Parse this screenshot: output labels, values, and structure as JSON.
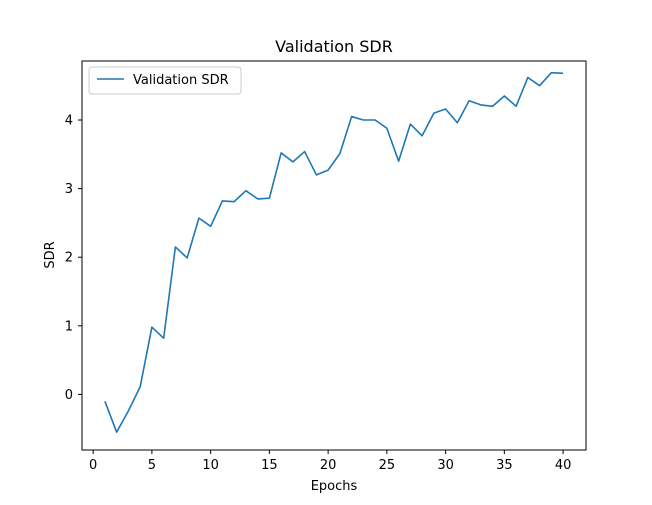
{
  "chart_data": {
    "type": "line",
    "title": "Validation SDR",
    "xlabel": "Epochs",
    "ylabel": "SDR",
    "xlim": [
      -0.95,
      41.95
    ],
    "ylim": [
      -0.81,
      4.86
    ],
    "xticks": [
      0,
      5,
      10,
      15,
      20,
      25,
      30,
      35,
      40
    ],
    "yticks": [
      0,
      1,
      2,
      3,
      4
    ],
    "grid": false,
    "legend_position": "top-left",
    "series": [
      {
        "name": "Validation SDR",
        "color": "#1f77b4",
        "x": [
          1,
          2,
          3,
          4,
          5,
          6,
          7,
          8,
          9,
          10,
          11,
          12,
          13,
          14,
          15,
          16,
          17,
          18,
          19,
          20,
          21,
          22,
          23,
          24,
          25,
          26,
          27,
          28,
          29,
          30,
          31,
          32,
          33,
          34,
          35,
          36,
          37,
          38,
          39,
          40
        ],
        "y": [
          -0.1,
          -0.55,
          -0.24,
          0.11,
          0.98,
          0.82,
          2.15,
          1.99,
          2.57,
          2.45,
          2.82,
          2.81,
          2.97,
          2.85,
          2.86,
          3.52,
          3.39,
          3.54,
          3.2,
          3.27,
          3.51,
          4.05,
          4.0,
          4.0,
          3.88,
          3.4,
          3.94,
          3.77,
          4.1,
          4.16,
          3.96,
          4.28,
          4.22,
          4.2,
          4.35,
          4.2,
          4.62,
          4.5,
          4.69,
          4.68
        ]
      }
    ]
  }
}
